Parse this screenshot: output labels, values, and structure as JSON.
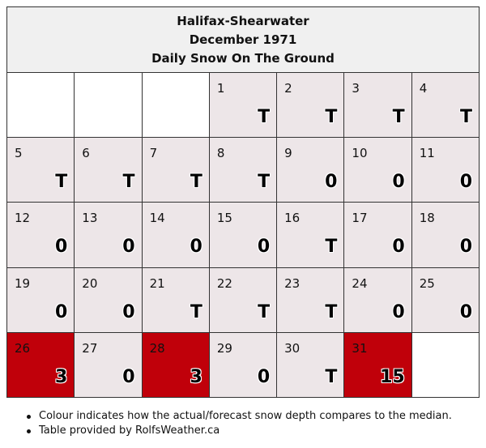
{
  "header": {
    "station": "Halifax-Shearwater",
    "month": "December 1971",
    "subtitle": "Daily Snow On The Ground"
  },
  "colors": {
    "empty": "#ffffff",
    "normal": "#ede6e8",
    "above_median": "#c0000a"
  },
  "weeks": [
    [
      {
        "day": "",
        "value": "",
        "tone": "empty"
      },
      {
        "day": "",
        "value": "",
        "tone": "empty"
      },
      {
        "day": "",
        "value": "",
        "tone": "empty"
      },
      {
        "day": "1",
        "value": "T",
        "tone": "day"
      },
      {
        "day": "2",
        "value": "T",
        "tone": "day"
      },
      {
        "day": "3",
        "value": "T",
        "tone": "day"
      },
      {
        "day": "4",
        "value": "T",
        "tone": "day"
      }
    ],
    [
      {
        "day": "5",
        "value": "T",
        "tone": "day"
      },
      {
        "day": "6",
        "value": "T",
        "tone": "day"
      },
      {
        "day": "7",
        "value": "T",
        "tone": "day"
      },
      {
        "day": "8",
        "value": "T",
        "tone": "day"
      },
      {
        "day": "9",
        "value": "0",
        "tone": "day"
      },
      {
        "day": "10",
        "value": "0",
        "tone": "day"
      },
      {
        "day": "11",
        "value": "0",
        "tone": "day"
      }
    ],
    [
      {
        "day": "12",
        "value": "0",
        "tone": "day"
      },
      {
        "day": "13",
        "value": "0",
        "tone": "day"
      },
      {
        "day": "14",
        "value": "0",
        "tone": "day"
      },
      {
        "day": "15",
        "value": "0",
        "tone": "day"
      },
      {
        "day": "16",
        "value": "T",
        "tone": "day"
      },
      {
        "day": "17",
        "value": "0",
        "tone": "day"
      },
      {
        "day": "18",
        "value": "0",
        "tone": "day"
      }
    ],
    [
      {
        "day": "19",
        "value": "0",
        "tone": "day"
      },
      {
        "day": "20",
        "value": "0",
        "tone": "day"
      },
      {
        "day": "21",
        "value": "T",
        "tone": "day"
      },
      {
        "day": "22",
        "value": "T",
        "tone": "day"
      },
      {
        "day": "23",
        "value": "T",
        "tone": "day"
      },
      {
        "day": "24",
        "value": "0",
        "tone": "day"
      },
      {
        "day": "25",
        "value": "0",
        "tone": "day"
      }
    ],
    [
      {
        "day": "26",
        "value": "3",
        "tone": "red"
      },
      {
        "day": "27",
        "value": "0",
        "tone": "day"
      },
      {
        "day": "28",
        "value": "3",
        "tone": "red"
      },
      {
        "day": "29",
        "value": "0",
        "tone": "day"
      },
      {
        "day": "30",
        "value": "T",
        "tone": "day"
      },
      {
        "day": "31",
        "value": "15",
        "tone": "red"
      },
      {
        "day": "",
        "value": "",
        "tone": "empty"
      }
    ]
  ],
  "notes": [
    "Colour indicates how the actual/forecast snow depth compares to the median.",
    "Table provided by RolfsWeather.ca"
  ]
}
